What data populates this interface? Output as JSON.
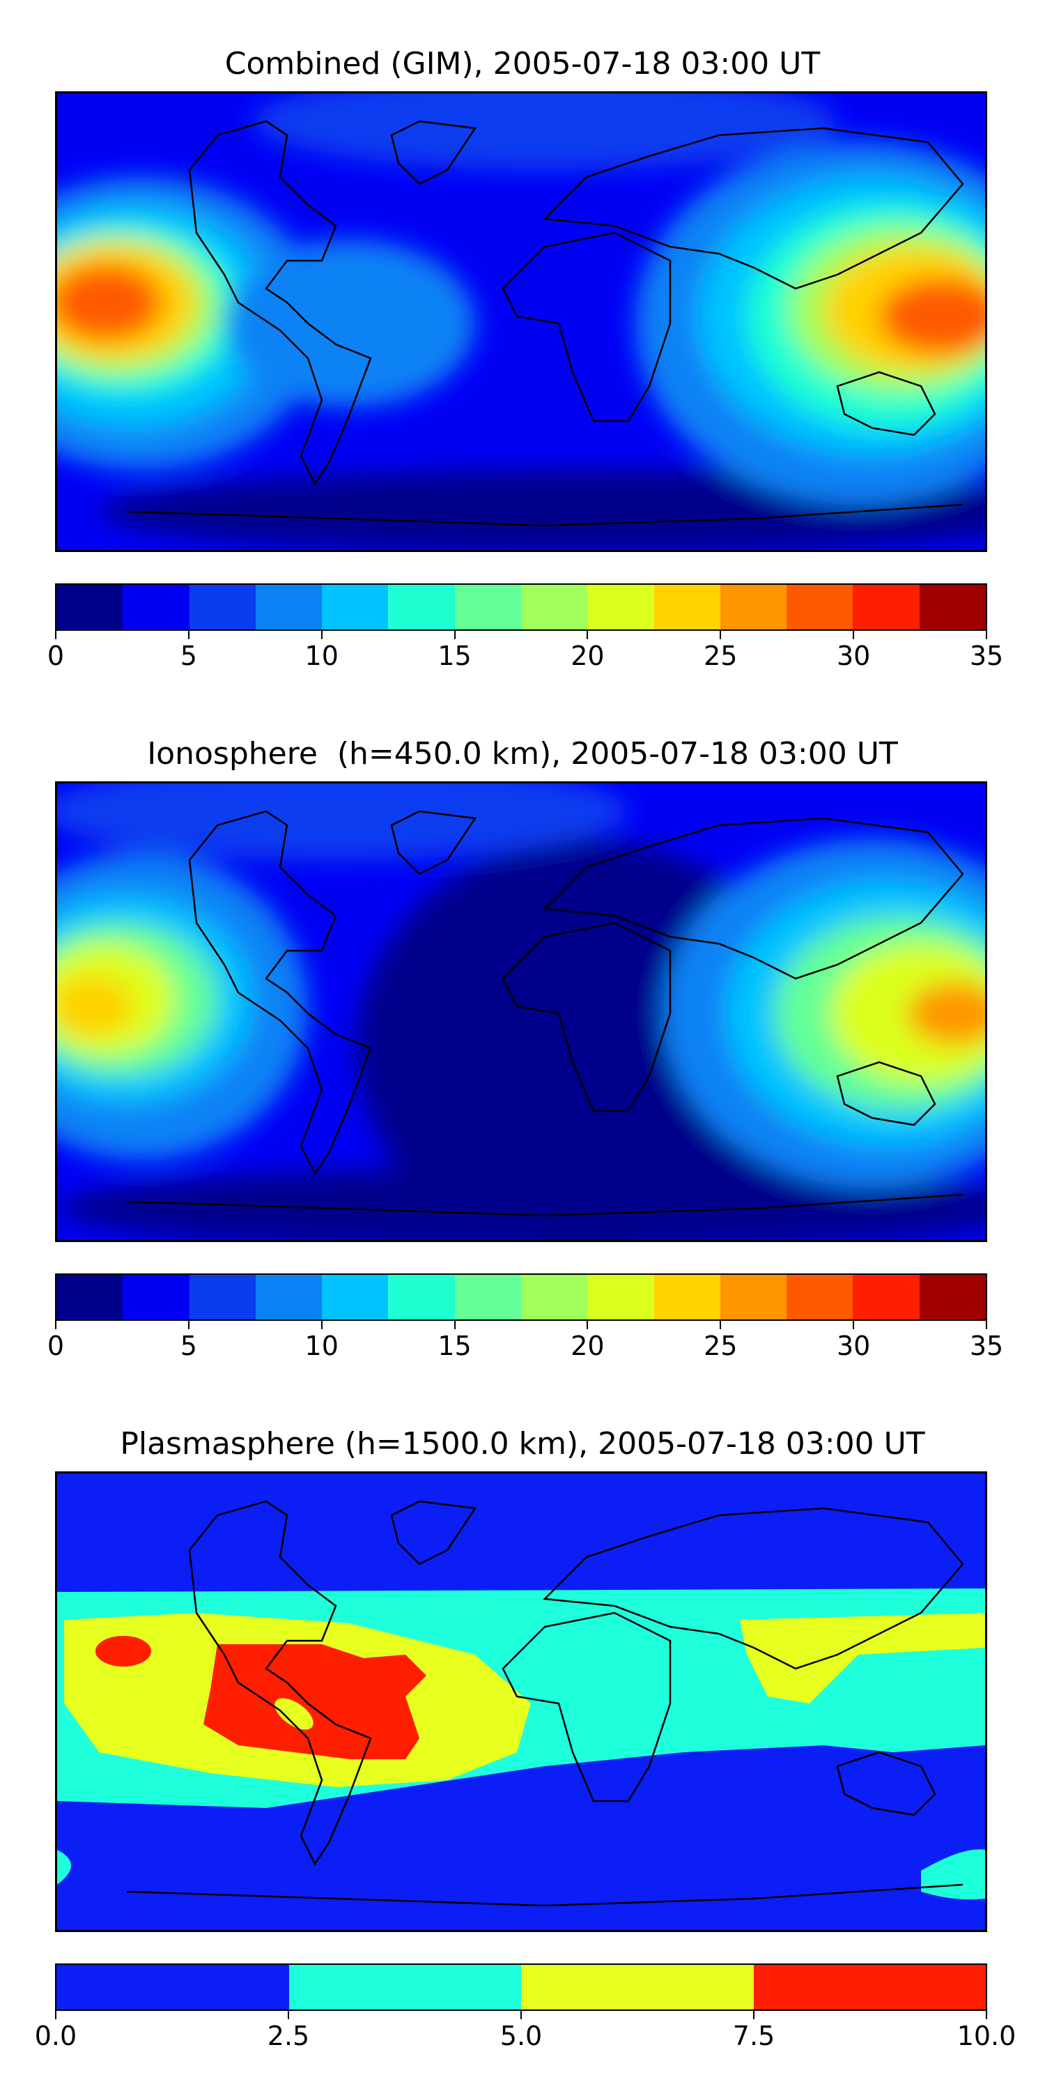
{
  "chart_data": [
    {
      "type": "heatmap",
      "title": "Combined (GIM), 2005-07-18 03:00 UT",
      "colorbar": {
        "levels": [
          0,
          2.5,
          5,
          7.5,
          10,
          12.5,
          15,
          17.5,
          20,
          22.5,
          25,
          27.5,
          30,
          32.5,
          35
        ],
        "tick_values": [
          0,
          5,
          10,
          15,
          20,
          25,
          30,
          35
        ],
        "tick_labels": [
          "0",
          "5",
          "10",
          "15",
          "20",
          "25",
          "30",
          "35"
        ],
        "colors": [
          "#00008b",
          "#0000f5",
          "#0a3cf0",
          "#0a82f5",
          "#00c3ff",
          "#1effd2",
          "#64ff96",
          "#a0ff5a",
          "#dcff1e",
          "#ffd200",
          "#ff9600",
          "#ff5a00",
          "#ff1e00",
          "#a00000"
        ]
      },
      "grid": false,
      "legend": "none"
    },
    {
      "type": "heatmap",
      "title": "Ionosphere  (h=450.0 km), 2005-07-18 03:00 UT",
      "colorbar": {
        "levels": [
          0,
          2.5,
          5,
          7.5,
          10,
          12.5,
          15,
          17.5,
          20,
          22.5,
          25,
          27.5,
          30,
          32.5,
          35
        ],
        "tick_values": [
          0,
          5,
          10,
          15,
          20,
          25,
          30,
          35
        ],
        "tick_labels": [
          "0",
          "5",
          "10",
          "15",
          "20",
          "25",
          "30",
          "35"
        ],
        "colors": [
          "#00008b",
          "#0000f5",
          "#0a3cf0",
          "#0a82f5",
          "#00c3ff",
          "#1effd2",
          "#64ff96",
          "#a0ff5a",
          "#dcff1e",
          "#ffd200",
          "#ff9600",
          "#ff5a00",
          "#ff1e00",
          "#a00000"
        ]
      },
      "grid": false,
      "legend": "none"
    },
    {
      "type": "heatmap",
      "title": "Plasmasphere (h=1500.0 km), 2005-07-18 03:00 UT",
      "colorbar": {
        "levels": [
          0,
          2.5,
          5,
          7.5,
          10
        ],
        "tick_values": [
          0,
          2.5,
          5,
          7.5,
          10
        ],
        "tick_labels": [
          "0.0",
          "2.5",
          "5.0",
          "7.5",
          "10.0"
        ],
        "colors": [
          "#0a1ef5",
          "#1effdc",
          "#e6ff1e",
          "#ff1e00"
        ]
      },
      "grid": false,
      "legend": "none"
    }
  ]
}
